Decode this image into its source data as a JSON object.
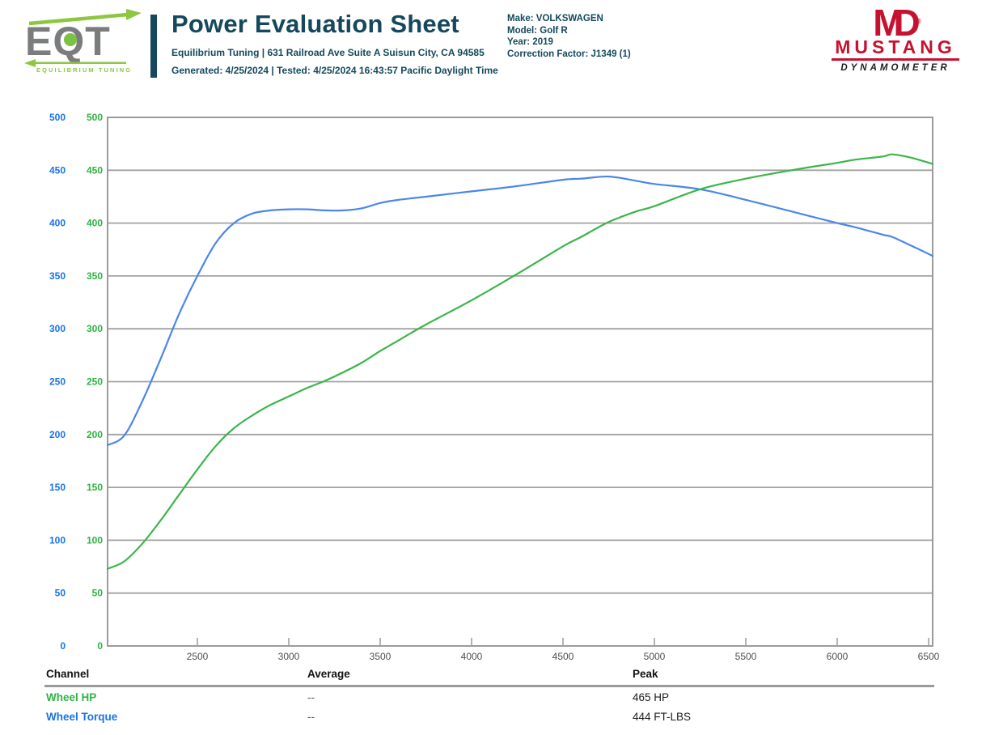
{
  "header": {
    "logo": {
      "brand": "EQT",
      "tagline": "EQUILIBRIUM TUNING"
    },
    "title": "Power Evaluation Sheet",
    "subtitle": "Equilibrium Tuning | 631 Railroad Ave Suite A Suisun City, CA 94585",
    "generated_line": "Generated: 4/25/2024 | Tested: 4/25/2024 16:43:57 Pacific Daylight Time",
    "vehicle": {
      "lines": [
        "Make: VOLKSWAGEN",
        "Model: Golf R",
        "Year: 2019",
        "Correction Factor: J1349 (1)"
      ]
    },
    "dyno_logo": {
      "monogram": "MD",
      "reg_mark": "®",
      "line1": "MUSTANG",
      "line2": "DYNAMOMETER"
    }
  },
  "chart_data": {
    "type": "line",
    "title": "",
    "xlabel": "",
    "ylabel": "",
    "x_range": [
      2009,
      6522
    ],
    "y_range": [
      0,
      500
    ],
    "x_ticks": [
      2500,
      3000,
      3500,
      4000,
      4500,
      5000,
      5500,
      6000,
      6500
    ],
    "y_ticks": [
      0,
      50,
      100,
      150,
      200,
      250,
      300,
      350,
      400,
      450,
      500
    ],
    "grid": "horizontal-only",
    "legend_position": "bottom-table",
    "dual_y_axis_note": "two y-label columns share 0-500 scale: green = Wheel HP, blue = Wheel Torque",
    "x": [
      2009,
      2100,
      2200,
      2300,
      2400,
      2500,
      2600,
      2700,
      2800,
      2900,
      3000,
      3100,
      3200,
      3300,
      3400,
      3500,
      3600,
      3750,
      4000,
      4250,
      4500,
      4600,
      4750,
      4900,
      5000,
      5250,
      5500,
      5750,
      6000,
      6100,
      6250,
      6300,
      6400,
      6522
    ],
    "series": [
      {
        "name": "Wheel HP",
        "unit": "HP",
        "color": "#3bb54a",
        "values": [
          73,
          80,
          97,
          119,
          143,
          167,
          189,
          206,
          218,
          228,
          236,
          244,
          251,
          259,
          268,
          279,
          289,
          304,
          327,
          352,
          378,
          387,
          401,
          411,
          416,
          432,
          442,
          450,
          457,
          460,
          463,
          465,
          462,
          456
        ]
      },
      {
        "name": "Wheel Torque",
        "unit": "FT-LBS",
        "color": "#4a87ea",
        "values": [
          190,
          199,
          232,
          272,
          314,
          350,
          381,
          400,
          409,
          412,
          413,
          413,
          412,
          412,
          414,
          419,
          422,
          425,
          430,
          435,
          441,
          442,
          444,
          440,
          437,
          432,
          422,
          411,
          400,
          396,
          389,
          387,
          379,
          369
        ]
      }
    ]
  },
  "axis_colors": {
    "hp_label_green": "#2eb342",
    "torque_label_blue": "#1b72e8",
    "grid_gray": "#a2a2a2",
    "tick_text_gray": "#4f4f4f"
  },
  "table": {
    "headers": [
      "Channel",
      "Average",
      "Peak"
    ],
    "rows": [
      {
        "channel": "Wheel HP",
        "average": "--",
        "peak": "465 HP",
        "color": "#2eb342"
      },
      {
        "channel": "Wheel Torque",
        "average": "--",
        "peak": "444 FT-LBS",
        "color": "#1b72e8"
      }
    ]
  }
}
